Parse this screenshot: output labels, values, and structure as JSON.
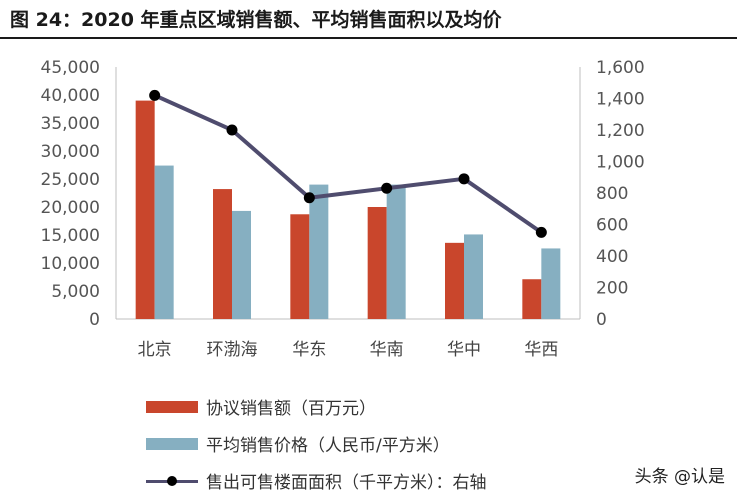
{
  "title": "图 24：2020 年重点区域销售额、平均销售面积以及均价",
  "watermark": "头条 @认是",
  "colors": {
    "sales": "#C9462C",
    "price": "#86AFC1",
    "area_line": "#4F4C6E",
    "area_marker": "#000000"
  },
  "chart_data": {
    "type": "bar",
    "categories": [
      "北京",
      "环渤海",
      "华东",
      "华南",
      "华中",
      "华西"
    ],
    "series": [
      {
        "name": "协议销售额（百万元）",
        "type": "bar",
        "axis": "left",
        "values": [
          39000,
          23200,
          18700,
          20000,
          13600,
          7100
        ]
      },
      {
        "name": "平均销售价格（人民币/平方米）",
        "type": "bar",
        "axis": "left",
        "values": [
          27400,
          19300,
          24000,
          24000,
          15100,
          12600
        ]
      },
      {
        "name": "售出可售楼面面积（千平方米）：右轴",
        "type": "line",
        "axis": "right",
        "values": [
          1420,
          1200,
          770,
          830,
          890,
          550
        ]
      }
    ],
    "y_left": {
      "min": 0,
      "max": 45000,
      "step": 5000,
      "ticks": [
        "0",
        "5,000",
        "10,000",
        "15,000",
        "20,000",
        "25,000",
        "30,000",
        "35,000",
        "40,000",
        "45,000"
      ]
    },
    "y_right": {
      "min": 0,
      "max": 1600,
      "step": 200,
      "ticks": [
        "0",
        "200",
        "400",
        "600",
        "800",
        "1,000",
        "1,200",
        "1,400",
        "1,600"
      ]
    },
    "legend_position": "bottom"
  }
}
